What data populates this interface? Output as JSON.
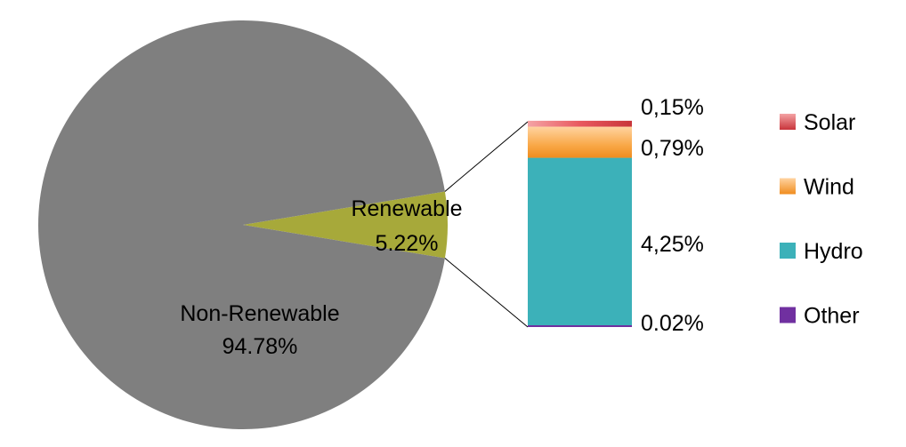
{
  "chart_data": [
    {
      "type": "pie",
      "slices": [
        {
          "label": "Renewable",
          "value": 5.22,
          "value_label": "5.22%",
          "color": "#a7a93a"
        },
        {
          "label": "Non-Renewable",
          "value": 94.78,
          "value_label": "94.78%",
          "color": "#7f7f7f"
        }
      ]
    },
    {
      "type": "bar",
      "stacked": true,
      "categories": [
        "Renewable"
      ],
      "series": [
        {
          "name": "Other",
          "value": 0.02,
          "value_label": "0.02%",
          "color": "#7030a0"
        },
        {
          "name": "Hydro",
          "value": 4.25,
          "value_label": "4,25%",
          "color": "#3cb1b9"
        },
        {
          "name": "Wind",
          "value": 0.79,
          "value_label": "0,79%",
          "color": "#f9a847"
        },
        {
          "name": "Solar",
          "value": 0.15,
          "value_label": "0,15%",
          "color": "#e8595f"
        }
      ],
      "legend": {
        "position": "right",
        "items": [
          "Solar",
          "Wind",
          "Hydro",
          "Other"
        ]
      }
    }
  ]
}
